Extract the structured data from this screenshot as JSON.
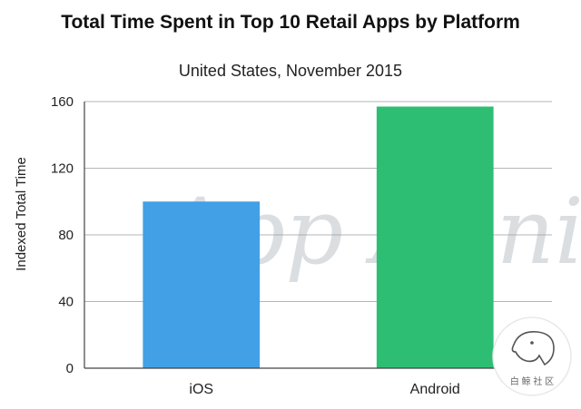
{
  "chart_data": {
    "type": "bar",
    "title": "Total Time Spent in Top 10 Retail Apps by Platform",
    "subtitle": "United States, November 2015",
    "categories": [
      "iOS",
      "Android"
    ],
    "values": [
      100,
      157
    ],
    "colors": [
      "#41a0e6",
      "#2dbe73"
    ],
    "xlabel": "",
    "ylabel": "Indexed Total Time",
    "ylim": [
      0,
      160
    ],
    "yticks": [
      0,
      40,
      80,
      120,
      160
    ],
    "grid": true,
    "legend": "none"
  },
  "watermark": {
    "text": "App Annie"
  },
  "seal": {
    "text": "白 鲸 社 区"
  }
}
